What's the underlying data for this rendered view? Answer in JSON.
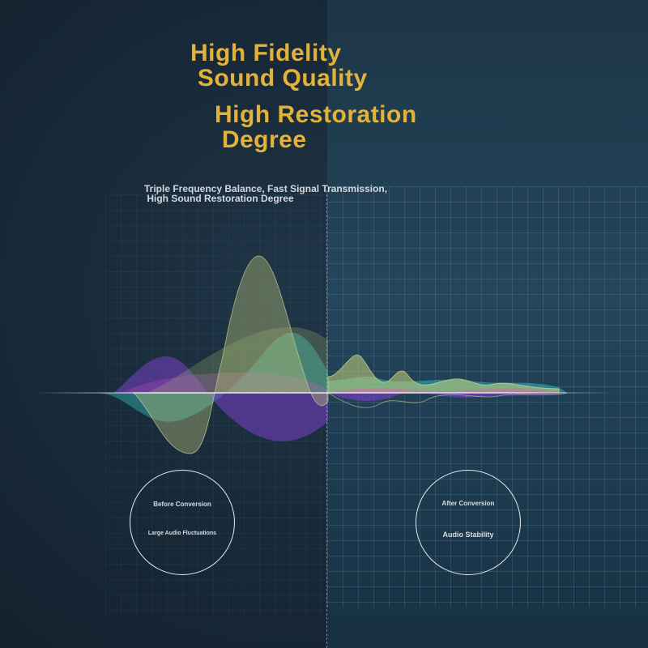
{
  "headline_1": "High Fidelity\n Sound Quality",
  "headline_2": "High Restoration\n Degree",
  "subtitle": "Triple Frequency Balance, Fast Signal Transmission,\n High Sound Restoration Degree",
  "before": {
    "title": "Before Conversion",
    "description": "Large Audio Fluctuations"
  },
  "after": {
    "title": "After Conversion",
    "description": "Audio Stability"
  },
  "colors": {
    "headline": "#e3b23a",
    "wave_green": "#b8c27a",
    "wave_purple": "#7a3fc8",
    "wave_teal": "#35b5b5",
    "wave_magenta": "#b04ac0"
  }
}
